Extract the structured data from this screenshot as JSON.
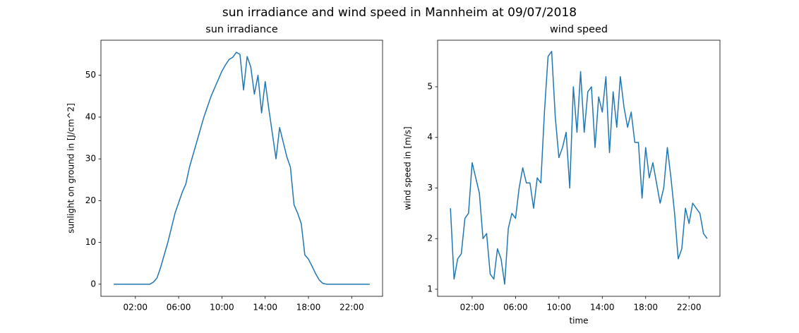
{
  "title": "sun irradiance and wind speed in Mannheim at 09/07/2018",
  "chart_data": [
    {
      "type": "line",
      "title": "sun irradiance",
      "ylabel": "sunlight on ground in [J/cm^2]",
      "x": [
        0,
        20,
        40,
        60,
        80,
        100,
        120,
        140,
        160,
        180,
        200,
        220,
        240,
        260,
        280,
        300,
        320,
        340,
        360,
        380,
        400,
        420,
        440,
        460,
        480,
        500,
        520,
        540,
        560,
        580,
        600,
        620,
        640,
        660,
        680,
        700,
        720,
        740,
        760,
        780,
        800,
        820,
        840,
        860,
        880,
        900,
        920,
        940,
        960,
        980,
        1000,
        1020,
        1040,
        1060,
        1080,
        1100,
        1120,
        1140,
        1160,
        1180,
        1200,
        1220,
        1240,
        1260,
        1280,
        1300,
        1320,
        1340,
        1360,
        1380,
        1400,
        1420
      ],
      "series": [
        {
          "name": "sun irradiance",
          "color": "#1f77b4",
          "values": [
            0,
            0,
            0,
            0,
            0,
            0,
            0,
            0,
            0,
            0,
            0,
            0.5,
            1.5,
            4,
            7,
            10,
            13.5,
            17,
            19.5,
            22,
            24,
            28,
            31,
            34,
            37,
            40,
            42.5,
            45,
            47,
            49,
            51,
            52.5,
            53.8,
            54.3,
            55.5,
            55,
            46.5,
            54.5,
            52,
            45.5,
            50,
            41,
            48.5,
            42,
            36,
            30,
            37.5,
            34,
            30.5,
            28,
            19,
            17,
            14.5,
            7,
            6,
            4.3,
            2.5,
            1,
            0.2,
            0,
            0,
            0,
            0,
            0,
            0,
            0,
            0,
            0,
            0,
            0,
            0,
            0
          ]
        }
      ],
      "xlim": [
        -71,
        1491
      ],
      "xticks": [
        {
          "value": 120,
          "label": "02:00"
        },
        {
          "value": 360,
          "label": "06:00"
        },
        {
          "value": 600,
          "label": "10:00"
        },
        {
          "value": 840,
          "label": "14:00"
        },
        {
          "value": 1080,
          "label": "18:00"
        },
        {
          "value": 1320,
          "label": "22:00"
        }
      ],
      "ylim": [
        -2.9,
        58.4
      ],
      "yticks": [
        0,
        10,
        20,
        30,
        40,
        50
      ]
    },
    {
      "type": "line",
      "title": "wind speed",
      "xlabel": "time",
      "ylabel": "wind speed in [m/s]",
      "x": [
        0,
        20,
        40,
        60,
        80,
        100,
        120,
        140,
        160,
        180,
        200,
        220,
        240,
        260,
        280,
        300,
        320,
        340,
        360,
        380,
        400,
        420,
        440,
        460,
        480,
        500,
        520,
        540,
        560,
        580,
        600,
        620,
        640,
        660,
        680,
        700,
        720,
        740,
        760,
        780,
        800,
        820,
        840,
        860,
        880,
        900,
        920,
        940,
        960,
        980,
        1000,
        1020,
        1040,
        1060,
        1080,
        1100,
        1120,
        1140,
        1160,
        1180,
        1200,
        1220,
        1240,
        1260,
        1280,
        1300,
        1320,
        1340,
        1360,
        1380,
        1400,
        1420
      ],
      "series": [
        {
          "name": "wind speed",
          "color": "#1f77b4",
          "values": [
            2.6,
            1.2,
            1.6,
            1.7,
            2.4,
            2.5,
            3.5,
            3.2,
            2.9,
            2.0,
            2.1,
            1.3,
            1.2,
            1.8,
            1.6,
            1.1,
            2.2,
            2.5,
            2.4,
            3.0,
            3.4,
            3.1,
            3.1,
            2.6,
            3.2,
            3.1,
            4.5,
            5.6,
            5.7,
            4.4,
            3.6,
            3.8,
            4.1,
            3.0,
            5.0,
            4.1,
            5.3,
            4.1,
            4.9,
            5.0,
            3.8,
            4.8,
            4.5,
            5.2,
            3.7,
            4.9,
            4.2,
            5.2,
            4.6,
            4.2,
            4.5,
            3.9,
            3.9,
            2.8,
            3.8,
            3.2,
            3.5,
            3.1,
            2.7,
            3.0,
            3.8,
            3.2,
            2.5,
            1.6,
            1.8,
            2.6,
            2.3,
            2.7,
            2.6,
            2.5,
            2.1,
            2.0
          ]
        }
      ],
      "xlim": [
        -71,
        1491
      ],
      "xticks": [
        {
          "value": 120,
          "label": "02:00"
        },
        {
          "value": 360,
          "label": "06:00"
        },
        {
          "value": 600,
          "label": "10:00"
        },
        {
          "value": 840,
          "label": "14:00"
        },
        {
          "value": 1080,
          "label": "18:00"
        },
        {
          "value": 1320,
          "label": "22:00"
        }
      ],
      "ylim": [
        0.86,
        5.92
      ],
      "yticks": [
        1,
        2,
        3,
        4,
        5
      ]
    }
  ]
}
